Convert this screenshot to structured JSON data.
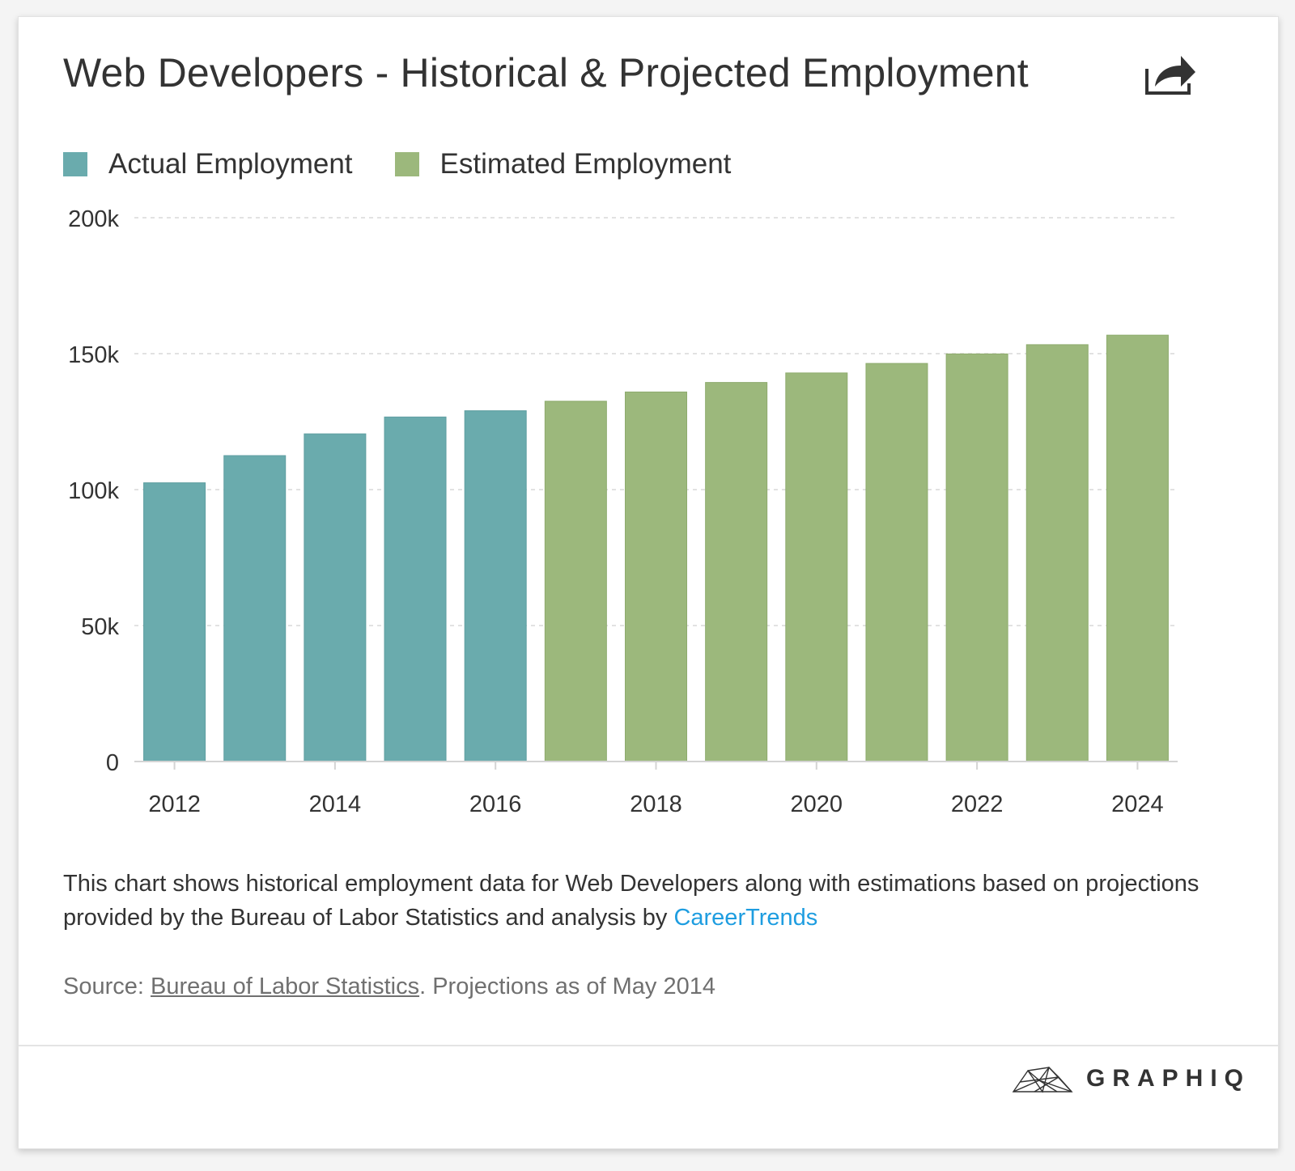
{
  "header": {
    "title": "Web Developers - Historical & Projected Employment"
  },
  "legend": {
    "items": [
      {
        "label": "Actual Employment",
        "color": "#6aabad"
      },
      {
        "label": "Estimated Employment",
        "color": "#9cb87c"
      }
    ]
  },
  "chart_data": {
    "type": "bar",
    "title": "Web Developers - Historical & Projected Employment",
    "xlabel": "",
    "ylabel": "",
    "ylim": [
      0,
      200000
    ],
    "y_ticks": [
      0,
      50000,
      100000,
      150000,
      200000
    ],
    "y_tick_labels": [
      "0",
      "50k",
      "100k",
      "150k",
      "200k"
    ],
    "x_tick_labels": [
      "2012",
      "2014",
      "2016",
      "2018",
      "2020",
      "2022",
      "2024"
    ],
    "grid": true,
    "categories": [
      2012,
      2013,
      2014,
      2015,
      2016,
      2017,
      2018,
      2019,
      2020,
      2021,
      2022,
      2023,
      2024
    ],
    "series": [
      {
        "name": "Actual Employment",
        "color": "#6aabad",
        "values": [
          102500,
          112500,
          120500,
          126700,
          129000,
          null,
          null,
          null,
          null,
          null,
          null,
          null,
          null
        ]
      },
      {
        "name": "Estimated Employment",
        "color": "#9cb87c",
        "values": [
          null,
          null,
          null,
          null,
          null,
          132500,
          135900,
          139400,
          142900,
          146400,
          149900,
          153300,
          156800
        ]
      }
    ]
  },
  "description": {
    "text": "This chart shows historical employment data for Web Developers along with estimations based on projections provided by the Bureau of Labor Statistics and analysis by ",
    "link": "CareerTrends"
  },
  "source": {
    "prefix": "Source: ",
    "link": "Bureau of Labor Statistics",
    "suffix": ". Projections as of May 2014"
  },
  "footer": {
    "brand": "GRAPHIQ"
  }
}
